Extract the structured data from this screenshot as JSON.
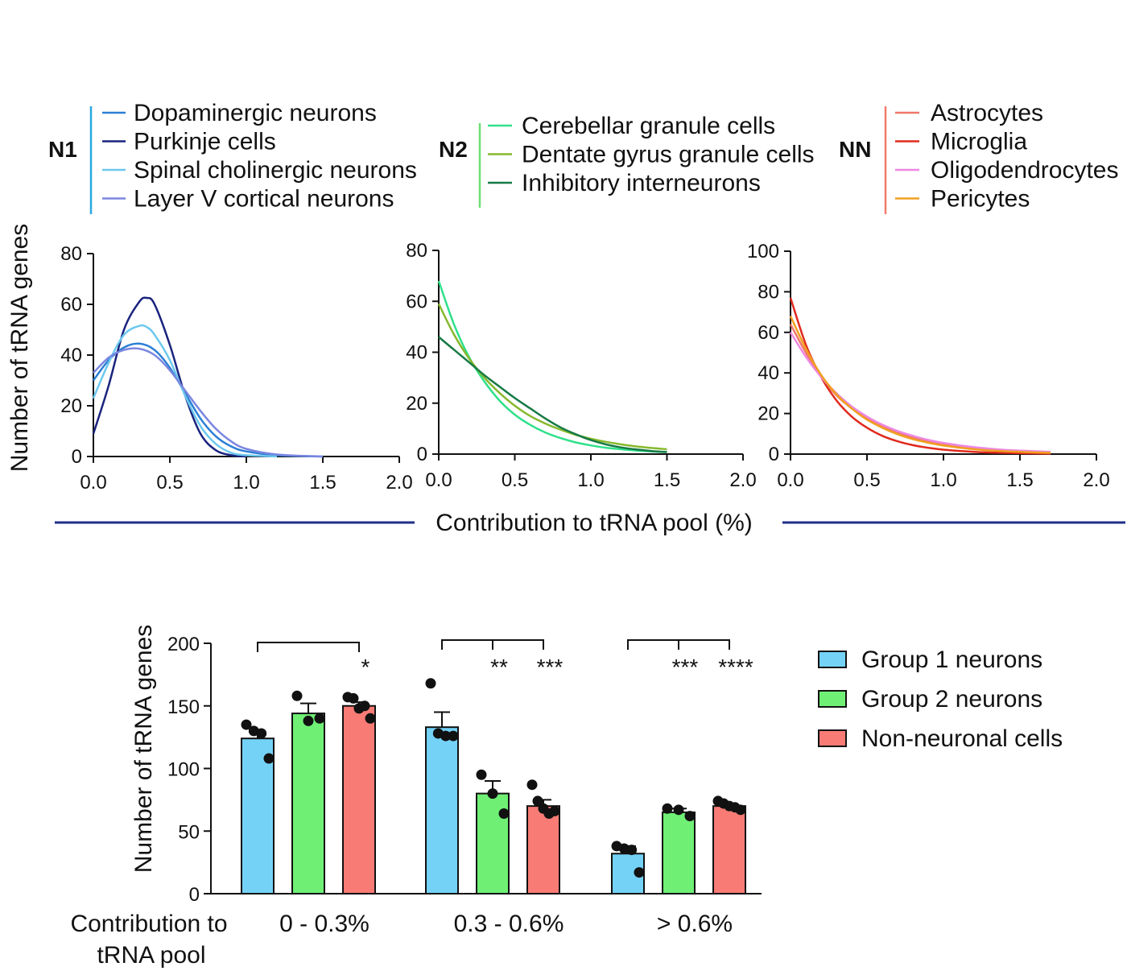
{
  "top_panel": {
    "y_axis_label": "Number of tRNA genes",
    "x_axis_label": "Contribution to tRNA pool (%)",
    "rule_color": "#1f2f8a"
  },
  "legend_groups": [
    {
      "group": "N1",
      "bar_color": "#29a8e0",
      "items": [
        {
          "label": "Dopaminergic neurons",
          "color": "#2b7fd4"
        },
        {
          "label": "Purkinje cells",
          "color": "#1a237e"
        },
        {
          "label": "Spinal cholinergic neurons",
          "color": "#6cc8ee"
        },
        {
          "label": "Layer V cortical neurons",
          "color": "#7b86e0"
        }
      ]
    },
    {
      "group": "N2",
      "bar_color": "#6fdf72",
      "items": [
        {
          "label": "Cerebellar granule cells",
          "color": "#2fe08a"
        },
        {
          "label": "Dentate gyrus granule cells",
          "color": "#86b82c"
        },
        {
          "label": "Inhibitory interneurons",
          "color": "#167a45"
        }
      ]
    },
    {
      "group": "NN",
      "bar_color": "#f07c6a",
      "items": [
        {
          "label": "Astrocytes",
          "color": "#f0766b"
        },
        {
          "label": "Microglia",
          "color": "#e02a1d"
        },
        {
          "label": "Oligodendrocytes",
          "color": "#ee88e2"
        },
        {
          "label": "Pericytes",
          "color": "#f0a020"
        }
      ]
    }
  ],
  "chart_data": [
    {
      "type": "line",
      "panel": "N1",
      "xlim": [
        0,
        2.0
      ],
      "ylim": [
        0,
        80
      ],
      "xticks": [
        "0.0",
        "0.5",
        "1.0",
        "1.5",
        "2.0"
      ],
      "yticks": [
        "0",
        "20",
        "40",
        "60",
        "80"
      ],
      "series": [
        {
          "name": "Dopaminergic neurons",
          "x": [
            0,
            0.1,
            0.2,
            0.3,
            0.4,
            0.5,
            0.6,
            0.7,
            0.8,
            0.9,
            1.0,
            1.2,
            1.5
          ],
          "y": [
            30,
            38,
            43,
            44.5,
            42,
            35,
            25,
            15,
            8,
            4,
            2,
            0.5,
            0
          ]
        },
        {
          "name": "Purkinje cells",
          "x": [
            0,
            0.1,
            0.2,
            0.3,
            0.35,
            0.4,
            0.5,
            0.6,
            0.7,
            0.8,
            0.9,
            1.0
          ],
          "y": [
            9,
            28,
            50,
            61,
            62.5,
            60,
            44,
            24,
            9,
            2.5,
            0.5,
            0
          ]
        },
        {
          "name": "Spinal cholinergic neurons",
          "x": [
            0,
            0.1,
            0.2,
            0.3,
            0.35,
            0.4,
            0.5,
            0.6,
            0.7,
            0.8,
            0.9,
            1.0,
            1.2
          ],
          "y": [
            23,
            37,
            48,
            51.5,
            51,
            48,
            38,
            24,
            12,
            5,
            1.5,
            0.5,
            0
          ]
        },
        {
          "name": "Layer V cortical neurons",
          "x": [
            0,
            0.1,
            0.2,
            0.3,
            0.4,
            0.5,
            0.6,
            0.7,
            0.8,
            0.9,
            1.0,
            1.2,
            1.5
          ],
          "y": [
            33,
            39,
            42,
            42.5,
            40,
            34,
            26,
            18,
            11,
            6,
            3,
            0.8,
            0
          ]
        }
      ]
    },
    {
      "type": "line",
      "panel": "N2",
      "xlim": [
        0,
        2.0
      ],
      "ylim": [
        0,
        80
      ],
      "xticks": [
        "0.0",
        "0.5",
        "1.0",
        "1.5",
        "2.0"
      ],
      "yticks": [
        "0",
        "20",
        "40",
        "60",
        "80"
      ],
      "series": [
        {
          "name": "Cerebellar granule cells",
          "x": [
            0,
            0.1,
            0.2,
            0.3,
            0.4,
            0.5,
            0.6,
            0.7,
            0.8,
            0.9,
            1.0,
            1.1,
            1.2,
            1.3,
            1.4,
            1.5
          ],
          "y": [
            68,
            51,
            38,
            28.5,
            21,
            15.5,
            11.5,
            8.5,
            6.3,
            4.6,
            3.4,
            2.5,
            1.9,
            1.4,
            1.0,
            0.8
          ]
        },
        {
          "name": "Dentate gyrus granule cells",
          "x": [
            0,
            0.1,
            0.2,
            0.3,
            0.4,
            0.5,
            0.6,
            0.7,
            0.8,
            0.9,
            1.0,
            1.1,
            1.2,
            1.3,
            1.4,
            1.5
          ],
          "y": [
            59,
            47,
            37.5,
            30,
            24,
            19,
            15,
            12,
            9.6,
            7.6,
            6,
            4.8,
            3.8,
            3,
            2.4,
            1.9
          ]
        },
        {
          "name": "Inhibitory interneurons",
          "x": [
            0,
            0.1,
            0.2,
            0.3,
            0.4,
            0.5,
            0.6,
            0.7,
            0.8,
            0.9,
            1.0,
            1.1,
            1.2,
            1.3,
            1.4,
            1.5
          ],
          "y": [
            46,
            41,
            36,
            31,
            26.5,
            22,
            18,
            14,
            10.5,
            7.8,
            5.5,
            3.8,
            2.6,
            1.8,
            1.2,
            0.8
          ]
        }
      ]
    },
    {
      "type": "line",
      "panel": "NN",
      "xlim": [
        0,
        2.0
      ],
      "ylim": [
        0,
        100
      ],
      "xticks": [
        "0.0",
        "0.5",
        "1.0",
        "1.5",
        "2.0"
      ],
      "yticks": [
        "0",
        "20",
        "40",
        "60",
        "80",
        "100"
      ],
      "series": [
        {
          "name": "Astrocytes",
          "x": [
            0,
            0.1,
            0.2,
            0.3,
            0.4,
            0.5,
            0.6,
            0.7,
            0.8,
            0.9,
            1.0,
            1.2,
            1.4,
            1.7
          ],
          "y": [
            64,
            50,
            38,
            29,
            22.5,
            17.5,
            13.5,
            10.5,
            8,
            6.2,
            4.8,
            3,
            1.8,
            1
          ]
        },
        {
          "name": "Microglia",
          "x": [
            0,
            0.1,
            0.2,
            0.3,
            0.4,
            0.5,
            0.6,
            0.7,
            0.8,
            0.9,
            1.0,
            1.2,
            1.4,
            1.7
          ],
          "y": [
            77,
            54,
            38,
            26.5,
            18.5,
            13,
            9,
            6.3,
            4.4,
            3.1,
            2.2,
            1.1,
            0.6,
            0.2
          ]
        },
        {
          "name": "Oligodendrocytes",
          "x": [
            0,
            0.1,
            0.2,
            0.3,
            0.4,
            0.5,
            0.6,
            0.7,
            0.8,
            0.9,
            1.0,
            1.2,
            1.4,
            1.7
          ],
          "y": [
            60,
            48,
            38,
            30,
            23.5,
            18.5,
            14.5,
            11.4,
            9,
            7,
            5.5,
            3.4,
            2.1,
            1.1
          ]
        },
        {
          "name": "Pericytes",
          "x": [
            0,
            0.1,
            0.2,
            0.3,
            0.4,
            0.5,
            0.6,
            0.7,
            0.8,
            0.9,
            1.0,
            1.2,
            1.4,
            1.7
          ],
          "y": [
            68,
            52,
            39,
            29.5,
            22.5,
            17,
            13,
            9.8,
            7.4,
            5.6,
            4.2,
            2.4,
            1.4,
            0.6
          ]
        }
      ]
    },
    {
      "type": "bar",
      "panel": "summary",
      "ylabel": "Number of tRNA genes",
      "xlabel": "Contribution to tRNA pool",
      "ylim": [
        0,
        200
      ],
      "yticks": [
        "0",
        "50",
        "100",
        "150",
        "200"
      ],
      "categories": [
        "0 - 0.3%",
        "0.3 - 0.6%",
        "> 0.6%"
      ],
      "series": [
        {
          "name": "Group 1 neurons",
          "color": "#74d2f7",
          "values": [
            124,
            133,
            32
          ],
          "sem": [
            6,
            12,
            6
          ],
          "points": [
            [
              135,
              130,
              128,
              108
            ],
            [
              168,
              128,
              126,
              126
            ],
            [
              38,
              36,
              35,
              17
            ]
          ]
        },
        {
          "name": "Group 2 neurons",
          "color": "#6ff075",
          "values": [
            144,
            80,
            65
          ],
          "sem": [
            8,
            10,
            3
          ],
          "points": [
            [
              158,
              138,
              140
            ],
            [
              95,
              80,
              64
            ],
            [
              68,
              67,
              62
            ]
          ]
        },
        {
          "name": "Non-neuronal cells",
          "color": "#f87b75",
          "values": [
            150,
            70,
            70
          ],
          "sem": [
            3,
            5,
            2
          ],
          "points": [
            [
              157,
              156,
              148,
              150,
              140
            ],
            [
              87,
              74,
              68,
              64,
              66
            ],
            [
              74,
              72,
              70,
              69,
              67
            ]
          ]
        }
      ],
      "brackets": [
        {
          "category": 0,
          "from_series": 0,
          "to_series": [
            2
          ],
          "labels": [
            "*"
          ]
        },
        {
          "category": 1,
          "from_series": 0,
          "to_series": [
            1,
            2
          ],
          "labels": [
            "**",
            "***"
          ]
        },
        {
          "category": 2,
          "from_series": 0,
          "to_series": [
            1,
            2
          ],
          "labels": [
            "***",
            "****"
          ]
        }
      ]
    }
  ]
}
